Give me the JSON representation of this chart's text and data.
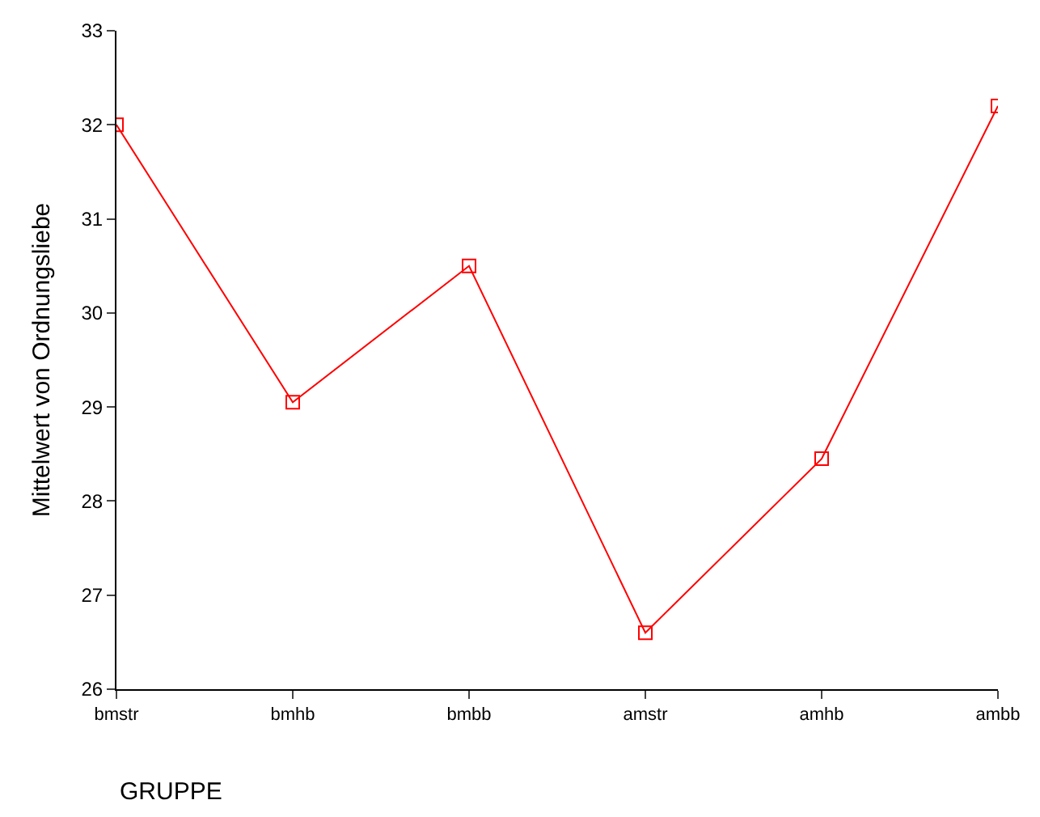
{
  "chart_data": {
    "type": "line",
    "xlabel": "GRUPPE",
    "ylabel": "Mittelwert von Ordnungsliebe",
    "categories": [
      "bmstr",
      "bmhb",
      "bmbb",
      "amstr",
      "amhb",
      "ambb"
    ],
    "series": [
      {
        "color": "#ff0000",
        "values": [
          32.0,
          29.05,
          30.5,
          26.6,
          28.45,
          32.2
        ]
      }
    ],
    "ylim": [
      26,
      33
    ],
    "yticks": [
      26,
      27,
      28,
      29,
      30,
      31,
      32,
      33
    ],
    "marker": "square",
    "line_style": "solid"
  }
}
